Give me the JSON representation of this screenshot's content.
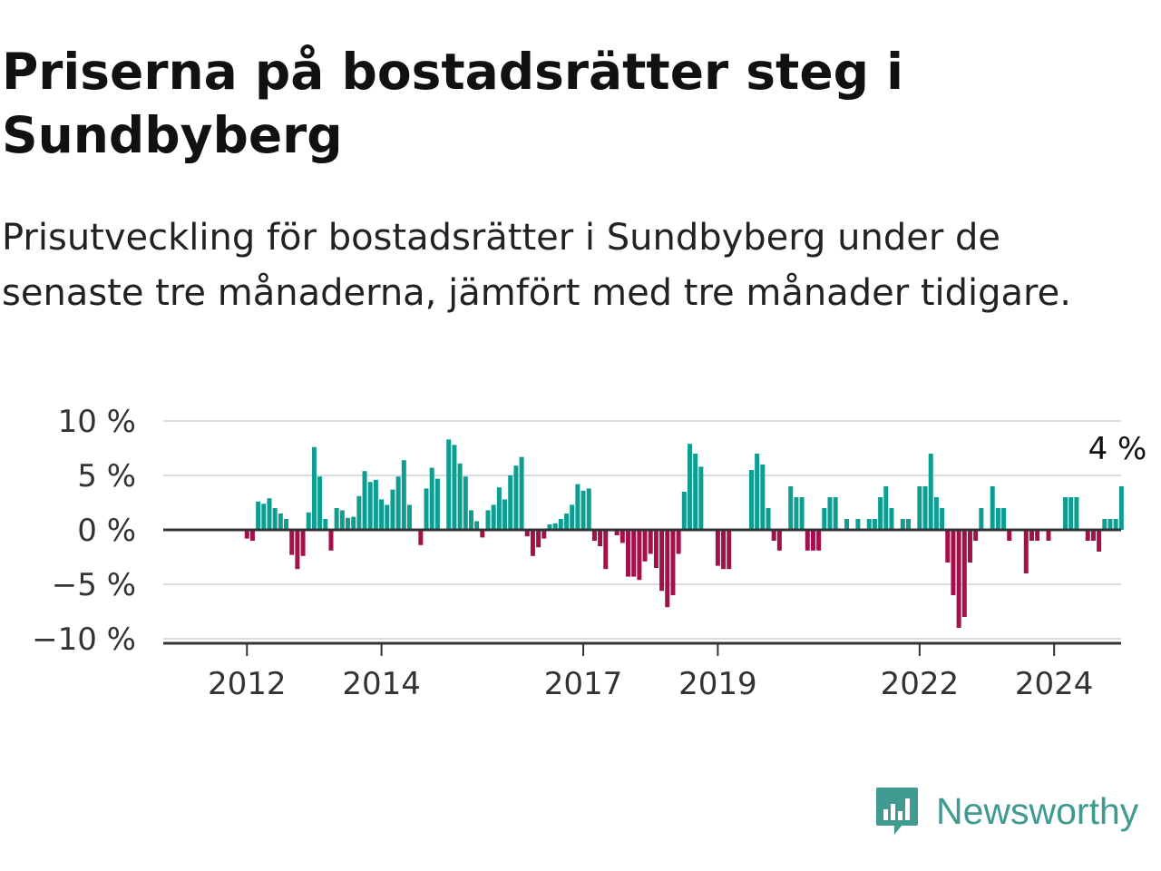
{
  "title": "Priserna på bostadsrätter steg i Sundbyberg",
  "subtitle": "Prisutveckling för bostadsrätter i Sundbyberg under de senaste tre månaderna, jämfört med tre månader tidigare.",
  "brand": {
    "name": "Newsworthy",
    "icon": "newsworthy-logo-icon",
    "color": "#3f9a8f"
  },
  "colors": {
    "positive": "#0d9e91",
    "negative": "#a3104a",
    "grid": "#dddddd",
    "zero": "#333333"
  },
  "chart_data": {
    "type": "bar",
    "x_unit": "month",
    "start": "2011-06",
    "ylim": [
      -10,
      10
    ],
    "yticks": [
      {
        "value": 10,
        "label": "10 %"
      },
      {
        "value": 5,
        "label": "5 %"
      },
      {
        "value": 0,
        "label": "0 %"
      },
      {
        "value": -5,
        "label": "−5 %"
      },
      {
        "value": -10,
        "label": "−10 %"
      }
    ],
    "xticks": [
      {
        "date": "2012-01",
        "label": "2012"
      },
      {
        "date": "2014-01",
        "label": "2014"
      },
      {
        "date": "2017-01",
        "label": "2017"
      },
      {
        "date": "2019-01",
        "label": "2019"
      },
      {
        "date": "2022-01",
        "label": "2022"
      },
      {
        "date": "2024-01",
        "label": "2024"
      }
    ],
    "last_value_label": "4 %",
    "values": [
      0,
      0,
      0,
      0,
      0,
      0,
      0,
      -0.8,
      -1.0,
      2.6,
      2.4,
      2.9,
      2.0,
      1.5,
      1.0,
      -2.3,
      -3.6,
      -2.4,
      1.6,
      7.6,
      4.9,
      1.0,
      -1.9,
      2.0,
      1.8,
      1.1,
      1.2,
      3.1,
      5.4,
      4.4,
      4.6,
      2.8,
      2.3,
      3.7,
      4.9,
      6.4,
      2.3,
      0,
      -1.4,
      3.8,
      5.7,
      4.7,
      0,
      8.3,
      7.8,
      6.1,
      4.9,
      1.8,
      0.8,
      -0.7,
      1.8,
      2.3,
      3.9,
      2.8,
      5.0,
      5.9,
      6.7,
      -0.6,
      -2.4,
      -1.6,
      -0.8,
      0.5,
      0.6,
      1.0,
      1.5,
      2.3,
      4.2,
      3.6,
      3.8,
      -1.0,
      -1.5,
      -3.6,
      0,
      -0.5,
      -1.2,
      -4.3,
      -4.3,
      -4.6,
      -2.9,
      -2.2,
      -3.5,
      -5.6,
      -7.1,
      -6.0,
      -2.2,
      3.5,
      7.9,
      7.0,
      5.8,
      0,
      0,
      -3.3,
      -3.6,
      -3.6,
      0,
      0,
      0,
      5.5,
      7.0,
      6.0,
      2.0,
      -1.0,
      -1.9,
      0,
      4.0,
      3.0,
      3.0,
      -1.9,
      -1.9,
      -1.9,
      2.0,
      3.0,
      3.0,
      0,
      1.0,
      0,
      1.0,
      0,
      1.0,
      1.0,
      3.0,
      4.0,
      2.0,
      0,
      1.0,
      1.0,
      0,
      4.0,
      4.0,
      7.0,
      3.0,
      2.0,
      -3.0,
      -6.0,
      -9.0,
      -8.0,
      -3.0,
      -1.0,
      2.0,
      0,
      4.0,
      2.0,
      2.0,
      -1.0,
      0,
      0,
      -4.0,
      -1.0,
      -1.0,
      0,
      -1.0,
      0,
      0,
      3.0,
      3.0,
      3.0,
      0,
      -1.0,
      -1.0,
      -2.0,
      1.0,
      1.0,
      1.0,
      4.0
    ]
  }
}
